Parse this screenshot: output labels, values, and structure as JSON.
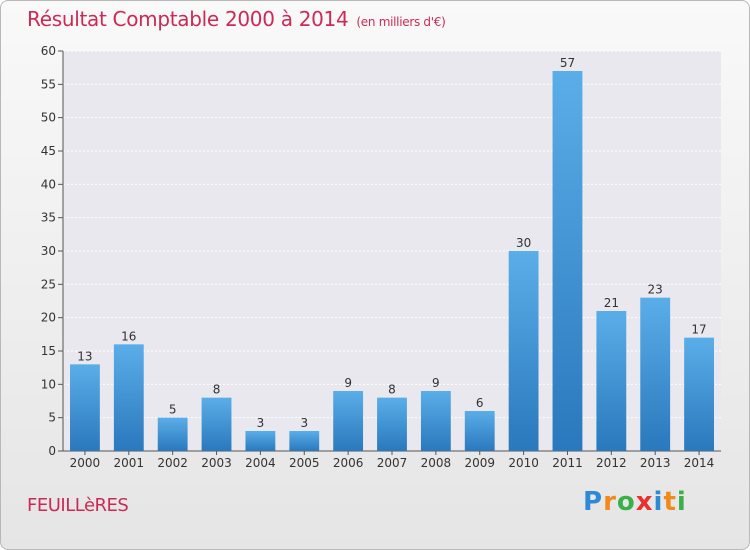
{
  "chart_data": {
    "type": "bar",
    "title": "Résultat Comptable 2000 à 2014",
    "subtitle": "(en milliers d'€)",
    "categories": [
      "2000",
      "2001",
      "2002",
      "2003",
      "2004",
      "2005",
      "2006",
      "2007",
      "2008",
      "2009",
      "2010",
      "2011",
      "2012",
      "2013",
      "2014"
    ],
    "values": [
      13,
      16,
      5,
      8,
      3,
      3,
      9,
      8,
      9,
      6,
      30,
      57,
      21,
      23,
      17
    ],
    "ylim": [
      0,
      60
    ],
    "yticks": [
      0,
      5,
      10,
      15,
      20,
      25,
      30,
      35,
      40,
      45,
      50,
      55,
      60
    ],
    "xlabel": "",
    "ylabel": "",
    "grid": true,
    "bar_color": "#3b8fd6"
  },
  "commune": "FEUILLèRES",
  "logo": {
    "letters": [
      "P",
      "r",
      "o",
      "x",
      "i",
      "t",
      "i"
    ],
    "colors": [
      "#2e8ad6",
      "#f08a1c",
      "#3bb04a",
      "#e8312f",
      "#2e8ad6",
      "#f08a1c",
      "#3bb04a"
    ]
  },
  "colors": {
    "accent": "#cc2a56"
  }
}
